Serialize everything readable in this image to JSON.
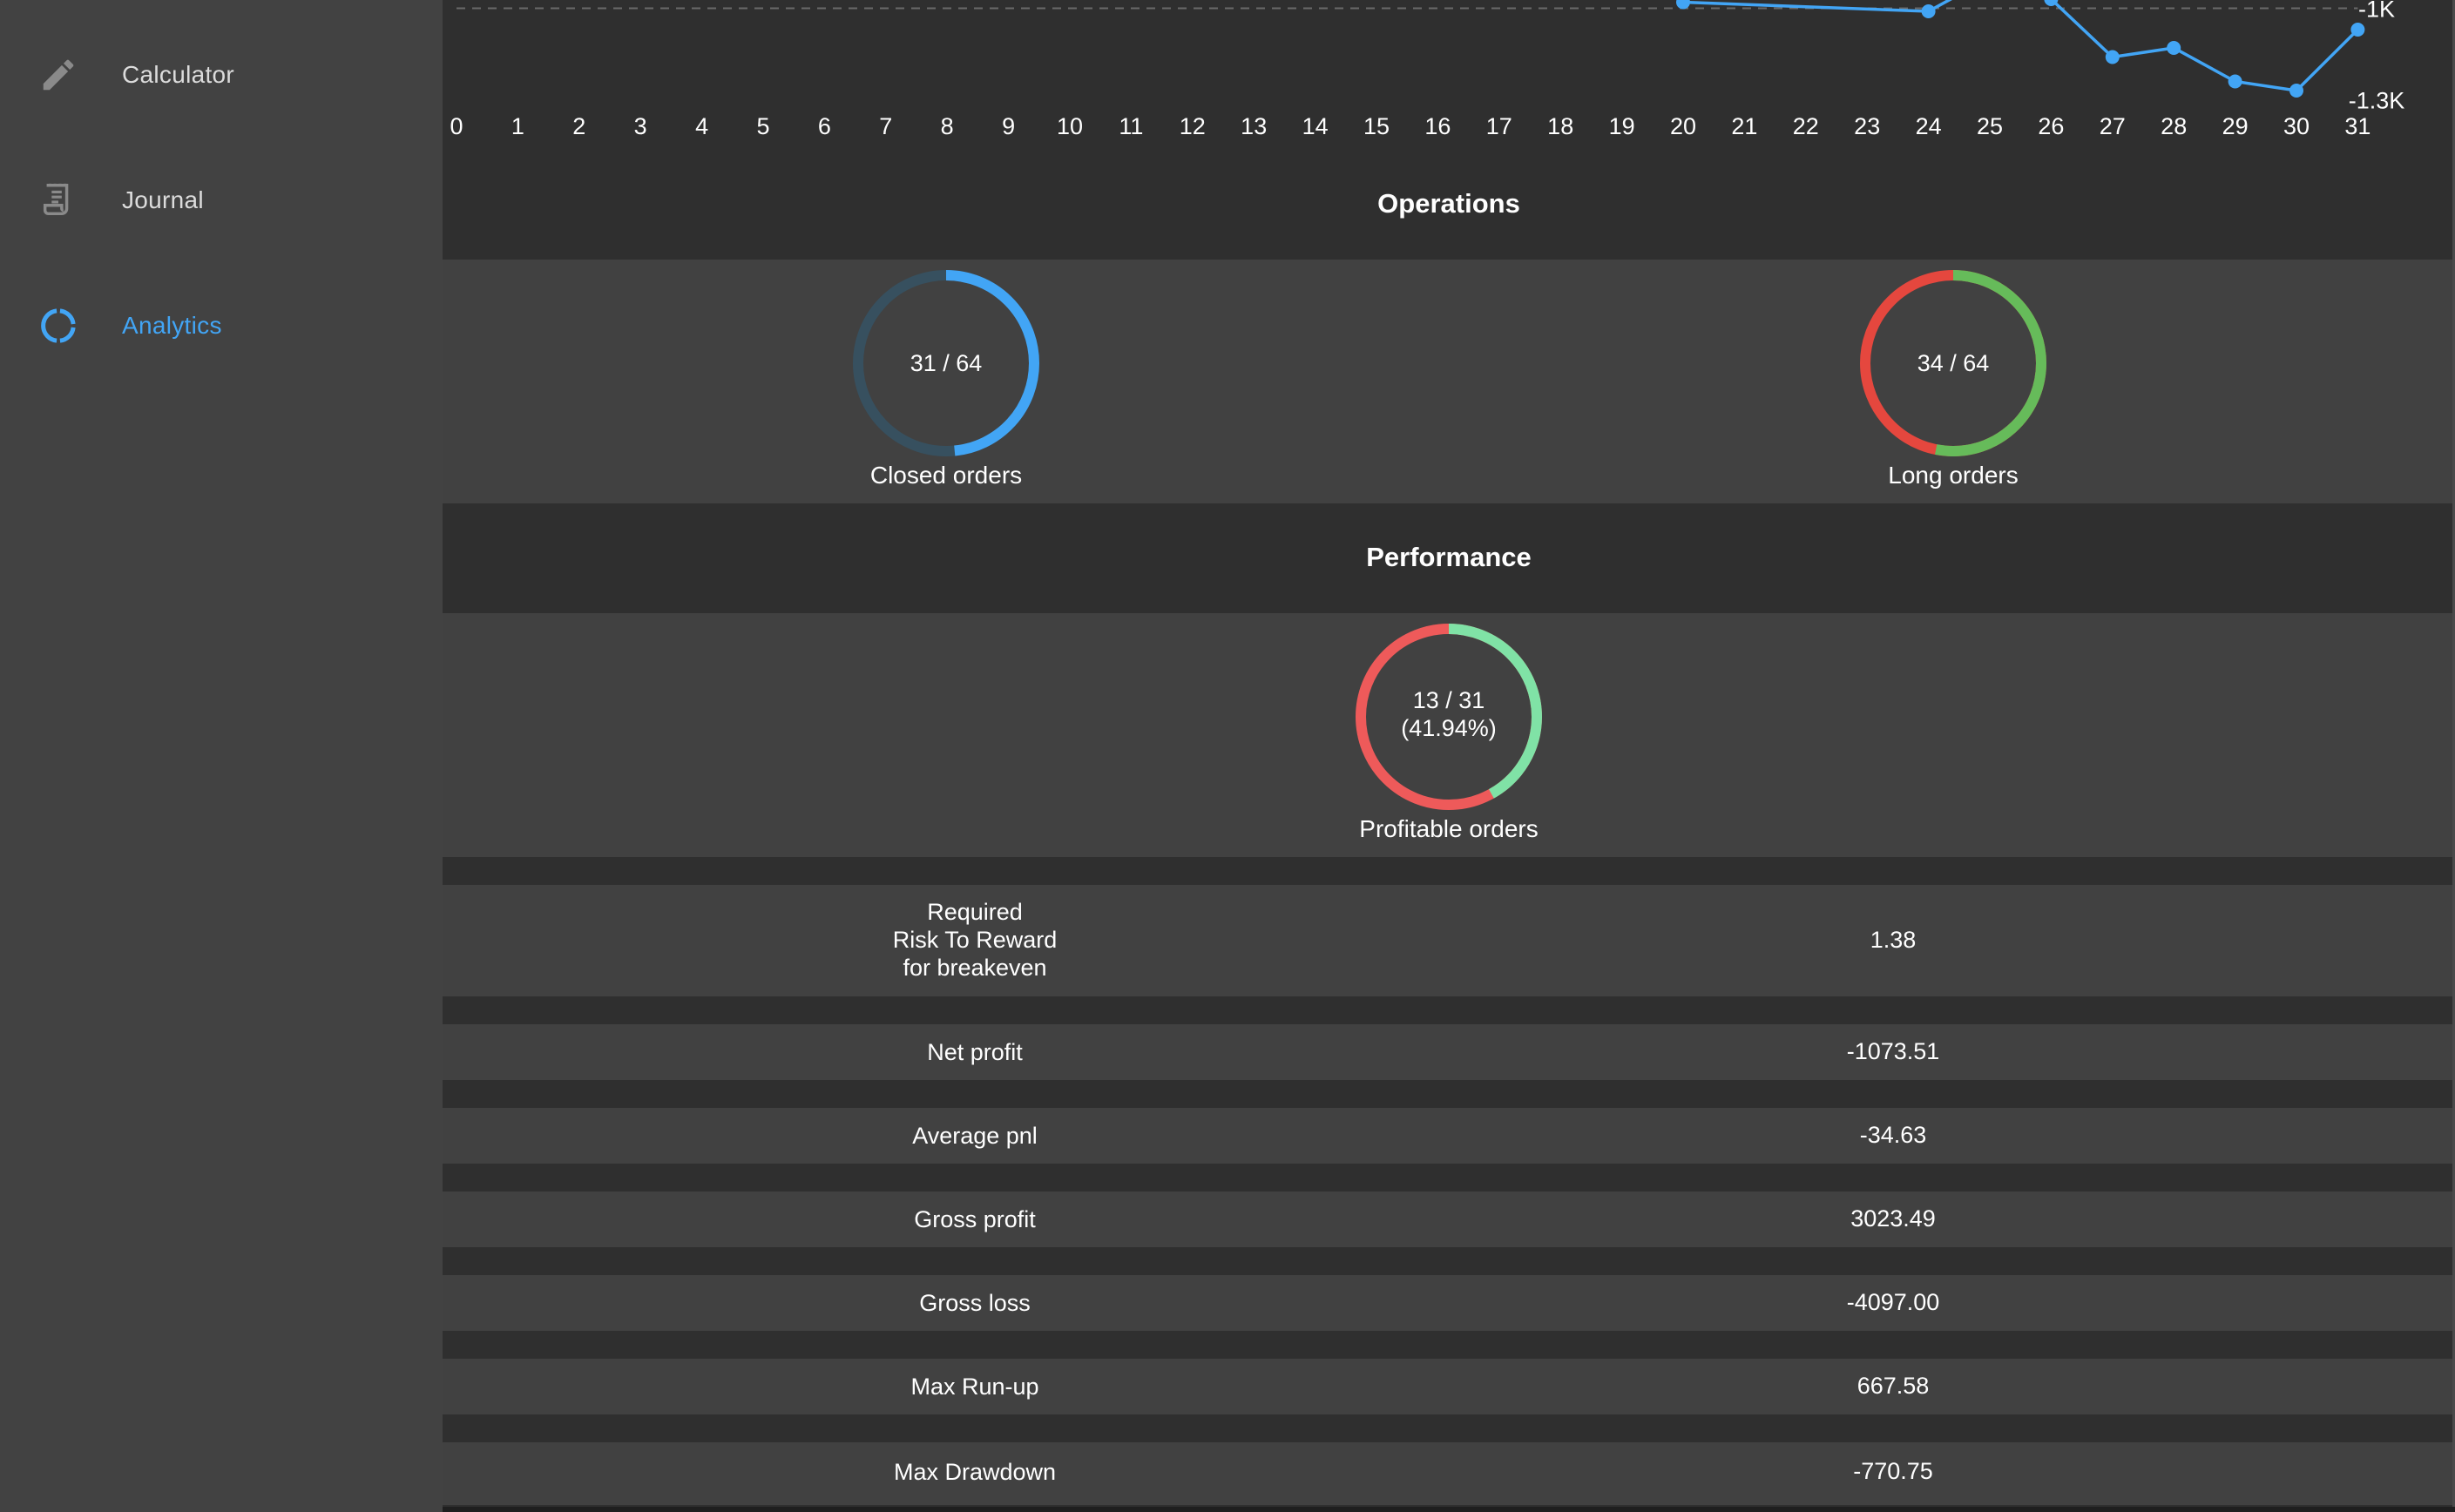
{
  "sidebar": {
    "items": [
      {
        "label": "Calculator",
        "icon": "pencil-icon",
        "active": false
      },
      {
        "label": "Journal",
        "icon": "receipt-icon",
        "active": false
      },
      {
        "label": "Analytics",
        "icon": "donut-chart-icon",
        "active": true
      }
    ],
    "colors": {
      "active": "#42a5f5",
      "inactive": "#dcdcdc",
      "background": "#424242"
    }
  },
  "chart_data": {
    "type": "line",
    "x_ticks": [
      "0",
      "1",
      "2",
      "3",
      "4",
      "5",
      "6",
      "7",
      "8",
      "9",
      "10",
      "11",
      "12",
      "13",
      "14",
      "15",
      "16",
      "17",
      "18",
      "19",
      "20",
      "21",
      "22",
      "23",
      "24",
      "25",
      "26",
      "27",
      "28",
      "29",
      "30",
      "31"
    ],
    "y_tick_labels": [
      "-1K",
      "-1.3K"
    ],
    "series": [
      {
        "color": "#42a5f5",
        "x": [
          20,
          24,
          25,
          26,
          27,
          28,
          29,
          30,
          31
        ],
        "y": [
          -980,
          -1010,
          -900,
          -970,
          -1160,
          -1130,
          -1240,
          -1270,
          -1070
        ]
      }
    ],
    "visible_y_range": [
      -1310,
      -950
    ],
    "grid": "dashed horizontal at -1K"
  },
  "operations": {
    "title": "Operations",
    "closed_orders": {
      "text": "31 / 64",
      "label": "Closed orders",
      "value": 31,
      "total": 64,
      "color_fill": "#42a5f5",
      "color_track": "#37505f"
    },
    "long_orders": {
      "text": "34 / 64",
      "label": "Long orders",
      "value": 34,
      "total": 64,
      "color_fill": "#66bb5a",
      "color_track": "#e5473e"
    }
  },
  "performance": {
    "title": "Performance",
    "profitable_orders": {
      "text_line1": "13 / 31",
      "text_line2": "(41.94%)",
      "label": "Profitable orders",
      "value": 13,
      "total": 31,
      "color_fill": "#80e2a6",
      "color_track": "#ee5a5a"
    },
    "metrics": [
      {
        "label": "Required\nRisk To Reward\nfor breakeven",
        "value": "1.38"
      },
      {
        "label": "Net profit",
        "value": "-1073.51"
      },
      {
        "label": "Average pnl",
        "value": "-34.63"
      },
      {
        "label": "Gross profit",
        "value": "3023.49"
      },
      {
        "label": "Gross loss",
        "value": "-4097.00"
      },
      {
        "label": "Max Run-up",
        "value": "667.58"
      },
      {
        "label": "Max Drawdown",
        "value": "-770.75"
      }
    ]
  }
}
